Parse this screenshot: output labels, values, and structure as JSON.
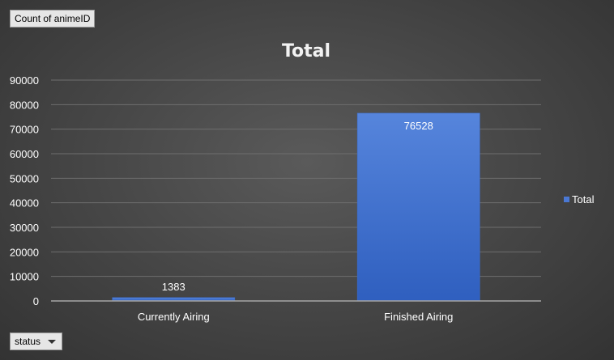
{
  "pivot": {
    "values_field": "Count of animeID",
    "axis_field": "status"
  },
  "colors": {
    "bar": "#4a78d4",
    "gridline": "#6e6e6e",
    "axis": "#a6a6a6",
    "text": "#ffffff"
  },
  "chart_data": {
    "type": "bar",
    "title": "Total",
    "xlabel": "",
    "ylabel": "",
    "categories": [
      "Currently Airing",
      "Finished Airing"
    ],
    "series": [
      {
        "name": "Total",
        "values": [
          1383,
          76528
        ]
      }
    ],
    "ylim": [
      0,
      90000
    ],
    "yticks": [
      0,
      10000,
      20000,
      30000,
      40000,
      50000,
      60000,
      70000,
      80000,
      90000
    ],
    "grid": true,
    "legend_position": "right",
    "data_labels": true
  }
}
